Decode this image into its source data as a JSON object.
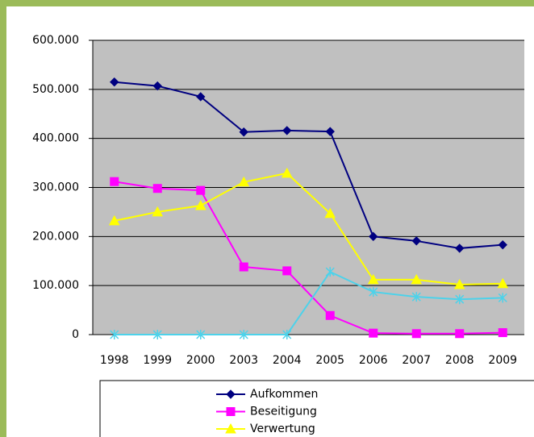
{
  "chart_data": {
    "type": "line",
    "categories": [
      "1998",
      "1999",
      "2000",
      "2003",
      "2004",
      "2005",
      "2006",
      "2007",
      "2008",
      "2009"
    ],
    "series": [
      {
        "name": "Aufkommen",
        "color": "#000080",
        "marker": "diamond",
        "values": [
          515000,
          507000,
          485000,
          413000,
          416000,
          414000,
          200000,
          191000,
          176000,
          183000
        ]
      },
      {
        "name": "Beseitigung",
        "color": "#ff00ff",
        "marker": "square",
        "values": [
          312000,
          298000,
          294000,
          138000,
          130000,
          39000,
          3000,
          2000,
          2000,
          4000
        ]
      },
      {
        "name": "Verwertung",
        "color": "#ffff00",
        "marker": "triangle",
        "values": [
          232000,
          250000,
          263000,
          311000,
          329000,
          247000,
          112000,
          112000,
          102000,
          104000
        ]
      },
      {
        "color": "#4dd2ea",
        "marker": "star",
        "values": [
          0,
          0,
          0,
          0,
          0,
          128000,
          87000,
          77000,
          72000,
          75000
        ]
      }
    ],
    "ylim": [
      0,
      600000
    ],
    "yticks": [
      0,
      {
        "value": 100000,
        "label": "100.000"
      },
      {
        "value": 200000,
        "label": "200.000"
      },
      {
        "value": 300000,
        "label": "300.000"
      },
      {
        "value": 400000,
        "label": "400.000"
      },
      {
        "value": 500000,
        "label": "500.000"
      },
      {
        "value": 600000,
        "label": "600.000"
      }
    ],
    "grid": true,
    "legend": "bottom"
  }
}
